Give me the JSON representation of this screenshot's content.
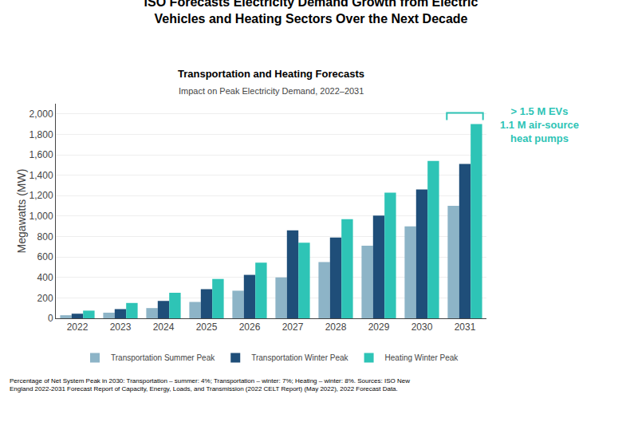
{
  "chart_data": {
    "type": "bar",
    "title": "ISO Forecasts Electricity Demand Growth from Electric\nVehicles and Heating Sectors Over the Next Decade",
    "chart_title": "Transportation and Heating Forecasts",
    "subtitle": "Impact on Peak Electricity Demand, 2022–2031",
    "ylabel": "Megawatts (MW)",
    "categories": [
      "2022",
      "2023",
      "2024",
      "2025",
      "2026",
      "2027",
      "2028",
      "2029",
      "2030",
      "2031"
    ],
    "series": [
      {
        "name": "Transportation Summer Peak",
        "color": "#8db4c7",
        "values": [
          30,
          55,
          100,
          160,
          270,
          400,
          550,
          710,
          900,
          1100
        ]
      },
      {
        "name": "Transportation Winter Peak",
        "color": "#1f4e79",
        "values": [
          45,
          90,
          170,
          285,
          425,
          860,
          790,
          1005,
          1260,
          1510
        ]
      },
      {
        "name": "Heating Winter Peak",
        "color": "#2ec4b6",
        "values": [
          75,
          150,
          250,
          385,
          545,
          740,
          970,
          1230,
          1540,
          1900
        ]
      }
    ],
    "ylim": [
      0,
      2100
    ],
    "yticks": [
      0,
      200,
      400,
      600,
      800,
      {
        "value": 1000,
        "label": "1,000"
      },
      {
        "value": 1200,
        "label": "1,200"
      },
      {
        "value": 1400,
        "label": "1,400"
      },
      {
        "value": 1600,
        "label": "1,600"
      },
      {
        "value": 1800,
        "label": "1,800"
      },
      {
        "value": 2000,
        "label": "2,000"
      }
    ],
    "grid": true,
    "legend": "bottom",
    "annotations": [
      {
        "text": "> 1.5 M EVs\n1.1 M air-source\nheat pumps",
        "color": "#2ec4b6"
      }
    ],
    "footer": "Percentage of Net System Peak in 2030: Transportation – summer: 4%; Transportation – winter: 7%; Heating – winter: 8%. Sources: ISO New\nEngland 2022-2031 Forecast Report of Capacity, Energy, Loads, and Transmission (2022 CELT Report) (May 2022), 2022 Forecast Data."
  }
}
